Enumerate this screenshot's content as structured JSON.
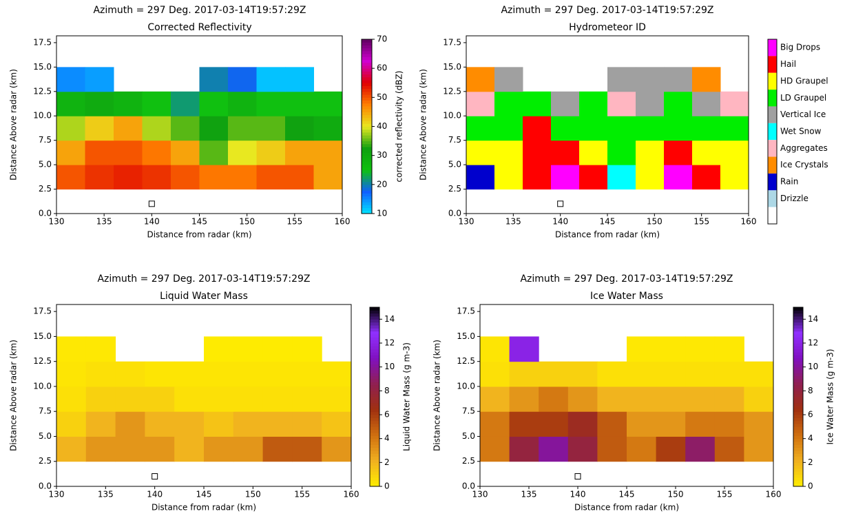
{
  "chart_data": [
    {
      "type": "heatmap",
      "title": "Azimuth = 297 Deg. 2017-03-14T19:57:29Z",
      "subtitle": "Corrected Reflectivity",
      "x_label": "Distance from radar (km)",
      "y_label": "Distance Above radar  (km)",
      "xlim": [
        130,
        160
      ],
      "ylim": [
        0,
        18.2
      ],
      "xticks": [
        130,
        135,
        140,
        145,
        150,
        155,
        160
      ],
      "yticks": [
        {
          "value": 0,
          "label": "0.0"
        },
        2.5,
        {
          "value": 5,
          "label": "5.0"
        },
        7.5,
        {
          "value": 10,
          "label": "10.0"
        },
        12.5,
        {
          "value": 15,
          "label": "15.0"
        },
        17.5
      ],
      "x_bins": [
        130,
        133,
        136,
        139,
        142,
        145,
        148,
        151,
        154,
        157,
        160
      ],
      "y_bins": [
        2.5,
        5,
        7.5,
        10,
        12.5,
        15
      ],
      "values": [
        [
          50,
          52,
          53,
          52,
          50,
          48,
          48,
          50,
          50,
          45
        ],
        [
          45,
          50,
          50,
          48,
          45,
          35,
          40,
          42,
          45,
          45
        ],
        [
          38,
          42,
          45,
          38,
          35,
          32,
          35,
          35,
          32,
          30
        ],
        [
          28,
          30,
          28,
          25,
          22,
          25,
          28,
          25,
          25,
          25
        ],
        [
          15,
          14,
          null,
          null,
          null,
          20,
          18,
          12,
          12,
          null
        ]
      ],
      "marker": {
        "x": 140,
        "y": 1
      },
      "colorbar": {
        "label": "corrected reflectivity (dBZ)",
        "clim": [
          10,
          70
        ],
        "ticks": [
          10,
          20,
          30,
          40,
          50,
          60,
          70
        ],
        "colormap": [
          "#00e5ff",
          "#1060ff",
          "#10c010",
          "#10a010",
          "#e8e820",
          "#ff8000",
          "#e00000",
          "#d000d0",
          "#600060"
        ]
      }
    },
    {
      "type": "categorical",
      "title": "Azimuth = 297 Deg. 2017-03-14T19:57:29Z",
      "subtitle": "Hydrometeor ID",
      "x_label": "Distance from radar (km)",
      "y_label": "Distance Above radar  (km)",
      "xlim": [
        130,
        160
      ],
      "ylim": [
        0,
        18.2
      ],
      "xticks": [
        130,
        135,
        140,
        145,
        150,
        155,
        160
      ],
      "yticks": [
        {
          "value": 0,
          "label": "0.0"
        },
        2.5,
        {
          "value": 5,
          "label": "5.0"
        },
        7.5,
        {
          "value": 10,
          "label": "10.0"
        },
        12.5,
        {
          "value": 15,
          "label": "15.0"
        },
        17.5
      ],
      "x_bins": [
        130,
        133,
        136,
        139,
        142,
        145,
        148,
        151,
        154,
        157,
        160
      ],
      "y_bins": [
        2.5,
        5,
        7.5,
        10,
        12.5,
        15
      ],
      "values": [
        [
          "Rain",
          "HD Graupel",
          "Hail",
          "Big Drops",
          "Hail",
          "Wet Snow",
          "HD Graupel",
          "Big Drops",
          "Hail",
          "HD Graupel"
        ],
        [
          "HD Graupel",
          "HD Graupel",
          "Hail",
          "Hail",
          "HD Graupel",
          "LD Graupel",
          "HD Graupel",
          "Hail",
          "HD Graupel",
          "HD Graupel"
        ],
        [
          "LD Graupel",
          "LD Graupel",
          "Hail",
          "LD Graupel",
          "LD Graupel",
          "LD Graupel",
          "LD Graupel",
          "LD Graupel",
          "LD Graupel",
          "LD Graupel"
        ],
        [
          "Aggregates",
          "LD Graupel",
          "LD Graupel",
          "Vertical Ice",
          "LD Graupel",
          "Aggregates",
          "Vertical Ice",
          "LD Graupel",
          "Vertical Ice",
          "Aggregates"
        ],
        [
          "Ice Crystals",
          "Vertical Ice",
          null,
          null,
          null,
          "Vertical Ice",
          "Vertical Ice",
          "Vertical Ice",
          "Ice Crystals",
          null
        ]
      ],
      "marker": {
        "x": 140,
        "y": 1
      },
      "legend": {
        "categories": [
          "Big Drops",
          "Hail",
          "HD Graupel",
          "LD Graupel",
          "Vertical Ice",
          "Wet Snow",
          "Aggregates",
          "Ice Crystals",
          "Rain",
          "Drizzle",
          null
        ],
        "colors": [
          "#ff00ff",
          "#ff0000",
          "#ffff00",
          "#00ee00",
          "#a0a0a0",
          "#00ffff",
          "#ffb6c1",
          "#ff8c00",
          "#0000cd",
          "#add8e6",
          "#ffffff"
        ]
      }
    },
    {
      "type": "heatmap",
      "title": "Azimuth = 297 Deg. 2017-03-14T19:57:29Z",
      "subtitle": "Liquid Water Mass",
      "x_label": "Distance from radar (km)",
      "y_label": "Distance Above radar  (km)",
      "xlim": [
        130,
        160
      ],
      "ylim": [
        0,
        18.2
      ],
      "xticks": [
        130,
        135,
        140,
        145,
        150,
        155,
        160
      ],
      "yticks": [
        {
          "value": 0,
          "label": "0.0"
        },
        2.5,
        {
          "value": 5,
          "label": "5.0"
        },
        7.5,
        {
          "value": 10,
          "label": "10.0"
        },
        12.5,
        {
          "value": 15,
          "label": "15.0"
        },
        17.5
      ],
      "x_bins": [
        130,
        133,
        136,
        139,
        142,
        145,
        148,
        151,
        154,
        157,
        160
      ],
      "y_bins": [
        2.5,
        5,
        7.5,
        10,
        12.5,
        15
      ],
      "values": [
        [
          2,
          3,
          3,
          3,
          2,
          3,
          3,
          5,
          5,
          3
        ],
        [
          1,
          2,
          3,
          2,
          2,
          1.5,
          2,
          2,
          2,
          1.5
        ],
        [
          0.5,
          1,
          1,
          1,
          0.5,
          0.5,
          0.5,
          0.5,
          0.5,
          0.5
        ],
        [
          0.3,
          0.5,
          0.5,
          0.3,
          0.3,
          0.3,
          0.3,
          0.3,
          0.3,
          0.3
        ],
        [
          0.2,
          0.2,
          null,
          null,
          null,
          0.1,
          0.1,
          0.1,
          0.1,
          null
        ]
      ],
      "marker": {
        "x": 140,
        "y": 1
      },
      "colorbar": {
        "label": "Liquid Water Mass (g m-3)",
        "clim": [
          0,
          15
        ],
        "ticks": [
          0,
          2,
          4,
          6,
          8,
          10,
          12,
          14
        ],
        "colormap": [
          "#ffee00",
          "#f0b020",
          "#d07010",
          "#a03010",
          "#902050",
          "#8010c0",
          "#9030ff",
          "#000000"
        ]
      }
    },
    {
      "type": "heatmap",
      "title": "Azimuth = 297 Deg. 2017-03-14T19:57:29Z",
      "subtitle": "Ice Water Mass",
      "x_label": "Distance from radar (km)",
      "y_label": "Distance Above radar  (km)",
      "xlim": [
        130,
        160
      ],
      "ylim": [
        0,
        18.2
      ],
      "xticks": [
        130,
        135,
        140,
        145,
        150,
        155,
        160
      ],
      "yticks": [
        {
          "value": 0,
          "label": "0.0"
        },
        2.5,
        {
          "value": 5,
          "label": "5.0"
        },
        7.5,
        {
          "value": 10,
          "label": "10.0"
        },
        12.5,
        {
          "value": 15,
          "label": "15.0"
        },
        17.5
      ],
      "x_bins": [
        130,
        133,
        136,
        139,
        142,
        145,
        148,
        151,
        154,
        157,
        160
      ],
      "y_bins": [
        2.5,
        5,
        7.5,
        10,
        12.5,
        15
      ],
      "values": [
        [
          4,
          8,
          10,
          8,
          5,
          4,
          6,
          9,
          5,
          3
        ],
        [
          4,
          6,
          6,
          7,
          5,
          3,
          3,
          4,
          4,
          3
        ],
        [
          2,
          3,
          4,
          3,
          2,
          2,
          2,
          2,
          2,
          1
        ],
        [
          0.5,
          1,
          1,
          1,
          0.5,
          0.5,
          0.5,
          0.5,
          0.5,
          0.5
        ],
        [
          0.3,
          12,
          null,
          null,
          null,
          0.2,
          0.2,
          0.2,
          0.2,
          null
        ]
      ],
      "marker": {
        "x": 140,
        "y": 1
      },
      "colorbar": {
        "label": "Ice Water Mass (g m-3)",
        "clim": [
          0,
          15
        ],
        "ticks": [
          0,
          2,
          4,
          6,
          8,
          10,
          12,
          14
        ],
        "colormap": [
          "#ffee00",
          "#f0b020",
          "#d07010",
          "#a03010",
          "#902050",
          "#8010c0",
          "#9030ff",
          "#000000"
        ]
      }
    }
  ]
}
